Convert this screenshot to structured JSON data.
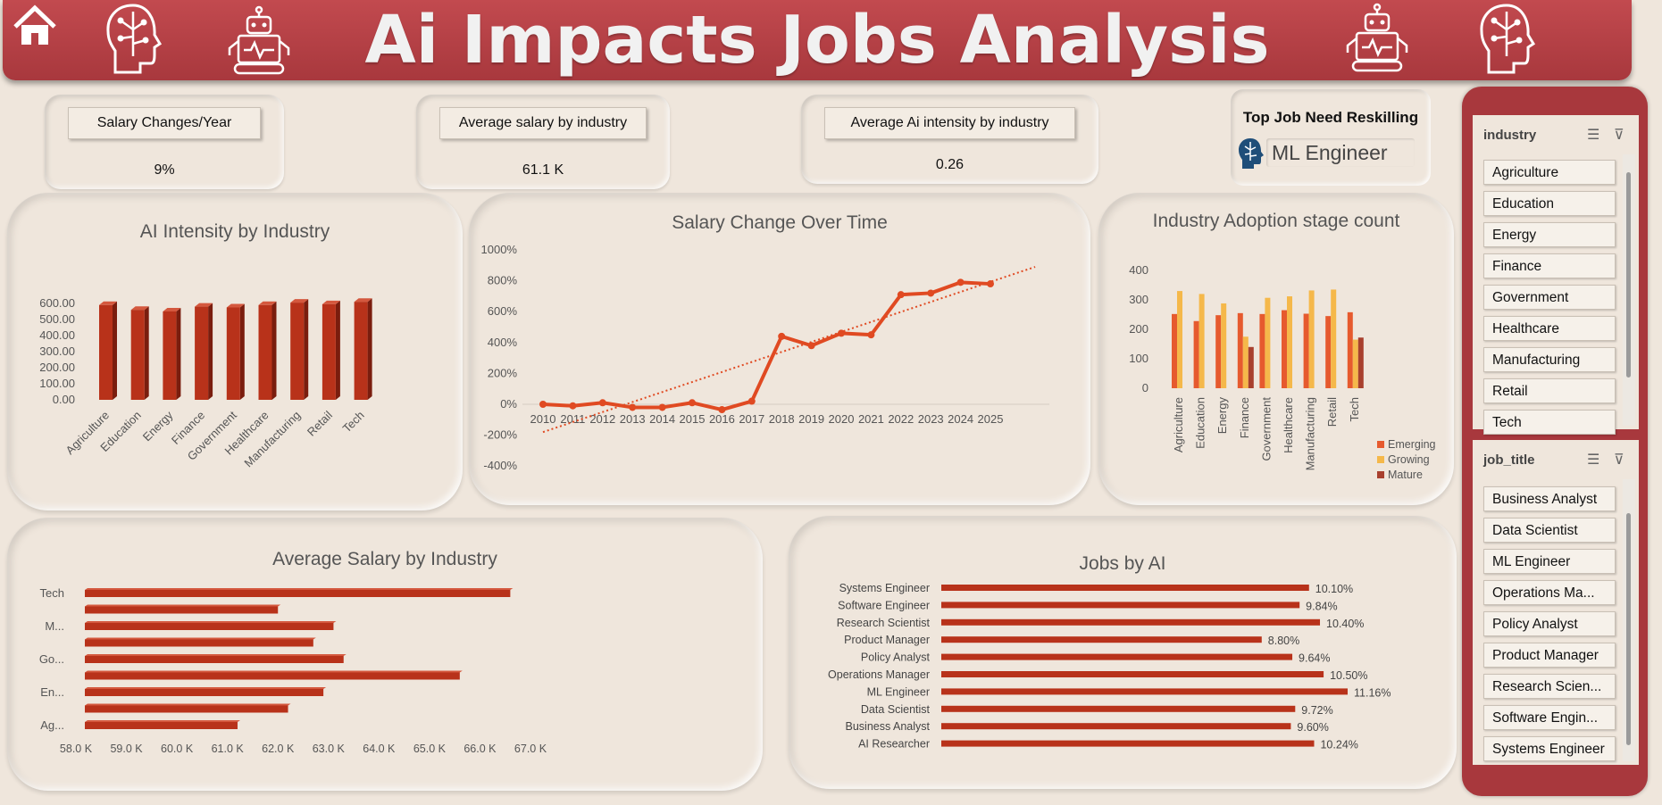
{
  "header": {
    "title": "Ai Impacts Jobs Analysis"
  },
  "kpis": {
    "salary_change": {
      "label": "Salary Changes/Year",
      "value": "9%"
    },
    "avg_salary": {
      "label": "Average salary by industry",
      "value": "61.1 K"
    },
    "avg_ai": {
      "label": "Average Ai intensity by industry",
      "value": "0.26"
    }
  },
  "top_job": {
    "label": "Top Job Need Reskilling",
    "value": "ML Engineer"
  },
  "colors": {
    "banner": "#a8383d",
    "bar": "#b8321a",
    "line": "#e04a22",
    "emerging": "#e65a2e",
    "growing": "#f5b84a",
    "mature": "#a8402e"
  },
  "chart_data": [
    {
      "type": "bar",
      "title": "AI Intensity by Industry",
      "categories": [
        "Agriculture",
        "Education",
        "Energy",
        "Finance",
        "Government",
        "Healthcare",
        "Manufacturing",
        "Retail",
        "Tech"
      ],
      "values": [
        590,
        560,
        550,
        580,
        575,
        590,
        605,
        595,
        610
      ],
      "ylim": [
        0,
        600
      ],
      "yticks": [
        "0.00",
        "100.00",
        "200.00",
        "300.00",
        "400.00",
        "500.00",
        "600.00"
      ]
    },
    {
      "type": "line",
      "title": "Salary Change Over Time",
      "x": [
        "2010",
        "2011",
        "2012",
        "2013",
        "2014",
        "2015",
        "2016",
        "2017",
        "2018",
        "2019",
        "2020",
        "2021",
        "2022",
        "2023",
        "2024",
        "2025"
      ],
      "values": [
        0,
        -10,
        10,
        -20,
        -20,
        10,
        -35,
        20,
        440,
        380,
        460,
        450,
        710,
        720,
        790,
        780
      ],
      "trendline": [
        -180,
        890
      ],
      "ylim": [
        -400,
        1000
      ],
      "yticks": [
        "-400%",
        "-200%",
        "0%",
        "200%",
        "400%",
        "600%",
        "800%",
        "1000%"
      ]
    },
    {
      "type": "bar",
      "title": "Industry Adoption stage count",
      "categories": [
        "Agriculture",
        "Education",
        "Energy",
        "Finance",
        "Government",
        "Healthcare",
        "Manufacturing",
        "Retail",
        "Tech"
      ],
      "series": [
        {
          "name": "Emerging",
          "values": [
            252,
            228,
            248,
            255,
            252,
            265,
            253,
            245,
            258
          ]
        },
        {
          "name": "Growing",
          "values": [
            330,
            320,
            288,
            175,
            307,
            312,
            332,
            335,
            165
          ]
        },
        {
          "name": "Mature",
          "values": [
            0,
            0,
            0,
            140,
            0,
            0,
            0,
            0,
            172
          ]
        }
      ],
      "ylim": [
        0,
        400
      ],
      "yticks": [
        "0",
        "100",
        "200",
        "300",
        "400"
      ],
      "legend": "bottom-right"
    },
    {
      "type": "bar",
      "orientation": "horizontal",
      "title": "Average Salary by Industry",
      "category_labels": [
        "Tech",
        "",
        "M...",
        "",
        "Go...",
        "",
        "En...",
        "",
        "Ag..."
      ],
      "values": [
        66.6,
        62.0,
        63.1,
        62.7,
        63.3,
        65.6,
        62.9,
        62.2,
        61.2
      ],
      "xlim": [
        58.0,
        67.0
      ],
      "xticks": [
        "58.0 K",
        "59.0 K",
        "60.0 K",
        "61.0 K",
        "62.0 K",
        "63.0 K",
        "64.0 K",
        "65.0 K",
        "66.0 K",
        "67.0 K"
      ]
    },
    {
      "type": "bar",
      "orientation": "horizontal",
      "title": "Jobs by AI",
      "categories": [
        "Systems Engineer",
        "Software Engineer",
        "Research Scientist",
        "Product Manager",
        "Policy Analyst",
        "Operations Manager",
        "ML Engineer",
        "Data Scientist",
        "Business Analyst",
        "AI Researcher"
      ],
      "values": [
        10.1,
        9.84,
        10.4,
        8.8,
        9.64,
        10.5,
        11.16,
        9.72,
        9.6,
        10.24
      ],
      "labels": [
        "10.10%",
        "9.84%",
        "10.40%",
        "8.80%",
        "9.64%",
        "10.50%",
        "11.16%",
        "9.72%",
        "9.60%",
        "10.24%"
      ]
    }
  ],
  "slicers": {
    "industry": {
      "title": "industry",
      "items": [
        "Agriculture",
        "Education",
        "Energy",
        "Finance",
        "Government",
        "Healthcare",
        "Manufacturing",
        "Retail",
        "Tech"
      ]
    },
    "job_title": {
      "title": "job_title",
      "items": [
        "Business Analyst",
        "Data Scientist",
        "ML Engineer",
        "Operations Ma...",
        "Policy Analyst",
        "Product Manager",
        "Research Scien...",
        "Software Engin...",
        "Systems Engineer"
      ]
    }
  }
}
